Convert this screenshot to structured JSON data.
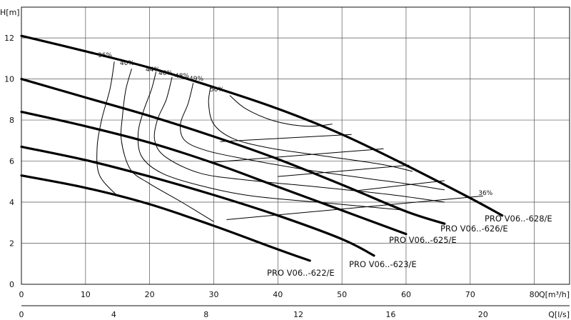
{
  "chart_data": {
    "type": "line",
    "title": "",
    "xlabel": "Q[m³/h]",
    "x2label": "Q[l/s]",
    "ylabel": "H[m]",
    "xlim": [
      0,
      85.5
    ],
    "ylim": [
      0,
      13.5
    ],
    "x2lim": [
      0,
      23.75
    ],
    "x_ticks": [
      0,
      10,
      20,
      30,
      40,
      50,
      60,
      70,
      80
    ],
    "x2_ticks": [
      0,
      4,
      8,
      12,
      16,
      20
    ],
    "y_ticks": [
      0,
      2,
      4,
      6,
      8,
      10,
      12
    ],
    "grid": true,
    "series": [
      {
        "name": "PRO V06..-628/E",
        "x": [
          0,
          10,
          20,
          30,
          40,
          50,
          60,
          70,
          75
        ],
        "y": [
          12.1,
          11.35,
          10.55,
          9.6,
          8.55,
          7.3,
          5.8,
          4.2,
          3.35
        ]
      },
      {
        "name": "PRO V06..-626/E",
        "x": [
          0,
          10,
          20,
          30,
          40,
          50,
          60,
          66
        ],
        "y": [
          10.0,
          9.1,
          8.2,
          7.2,
          6.1,
          4.85,
          3.55,
          2.95
        ]
      },
      {
        "name": "PRO V06..-625/E",
        "x": [
          0,
          10,
          20,
          30,
          40,
          50,
          60
        ],
        "y": [
          8.4,
          7.7,
          6.9,
          5.9,
          4.75,
          3.6,
          2.45
        ]
      },
      {
        "name": "PRO V06..-623/E",
        "x": [
          0,
          10,
          20,
          30,
          40,
          50,
          55
        ],
        "y": [
          6.7,
          6.05,
          5.25,
          4.35,
          3.35,
          2.2,
          1.4
        ]
      },
      {
        "name": "PRO V06..-622/E",
        "x": [
          0,
          10,
          20,
          30,
          40,
          45
        ],
        "y": [
          5.3,
          4.7,
          3.9,
          2.85,
          1.7,
          1.15
        ]
      }
    ],
    "efficiency_lines": [
      {
        "label": "36%",
        "x": [
          14.5,
          13.8,
          12.5,
          11.8,
          12.2,
          15.0
        ],
        "y": [
          10.85,
          9.5,
          8.0,
          6.6,
          5.3,
          4.3
        ]
      },
      {
        "label": "40%",
        "x": [
          17.2,
          16.3,
          15.8,
          15.6,
          17.0,
          20.0,
          25.0,
          30.0
        ],
        "y": [
          10.5,
          9.5,
          8.3,
          7.0,
          5.6,
          4.9,
          4.0,
          3.05
        ]
      },
      {
        "label": "44%",
        "x": [
          21.0,
          20.3,
          19.0,
          18.2,
          18.8,
          22.0,
          28.0,
          36.0,
          48.0,
          60.0
        ],
        "y": [
          10.35,
          9.5,
          8.4,
          7.3,
          6.2,
          5.4,
          4.8,
          4.3,
          3.95,
          3.6
        ]
      },
      {
        "label": "46%",
        "x": [
          23.5,
          22.6,
          21.2,
          20.8,
          22.5,
          28.0,
          36.0,
          46.0,
          58.0,
          66.0
        ],
        "y": [
          10.1,
          9.0,
          8.0,
          7.0,
          6.2,
          5.4,
          5.05,
          4.75,
          4.35,
          4.0
        ]
      },
      {
        "label": "48%",
        "x": [
          26.8,
          26.0,
          24.8,
          25.5,
          29.0,
          35.0,
          44.0,
          54.0,
          60.0,
          66.0
        ],
        "y": [
          9.8,
          8.8,
          7.8,
          7.0,
          6.5,
          6.1,
          5.6,
          5.15,
          4.9,
          4.6
        ]
      },
      {
        "label": "49%",
        "x": [
          29.5,
          29.2,
          30.0,
          33.0,
          38.5,
          46.0,
          56.0,
          61.0
        ],
        "y": [
          9.6,
          8.8,
          7.8,
          7.1,
          6.65,
          6.3,
          5.85,
          5.5
        ]
      },
      {
        "label": "50%",
        "x": [
          32.5,
          35.0,
          39.5,
          44.5,
          48.5
        ],
        "y": [
          9.2,
          8.55,
          7.95,
          7.7,
          7.8
        ]
      }
    ],
    "constant_head_lines": [
      {
        "x": [
          31.0,
          51.5
        ],
        "y": [
          6.95,
          7.3
        ]
      },
      {
        "x": [
          30.0,
          56.5
        ],
        "y": [
          5.95,
          6.6
        ]
      },
      {
        "x": [
          40.0,
          60.5
        ],
        "y": [
          5.25,
          5.8
        ]
      },
      {
        "x": [
          52.0,
          66.0
        ],
        "y": [
          4.55,
          5.05
        ]
      },
      {
        "x": [
          32.0,
          72.0
        ],
        "y": [
          3.15,
          4.3
        ]
      }
    ],
    "annotations": [
      {
        "text": "36%",
        "x": 71.5,
        "y": 4.35
      }
    ]
  }
}
